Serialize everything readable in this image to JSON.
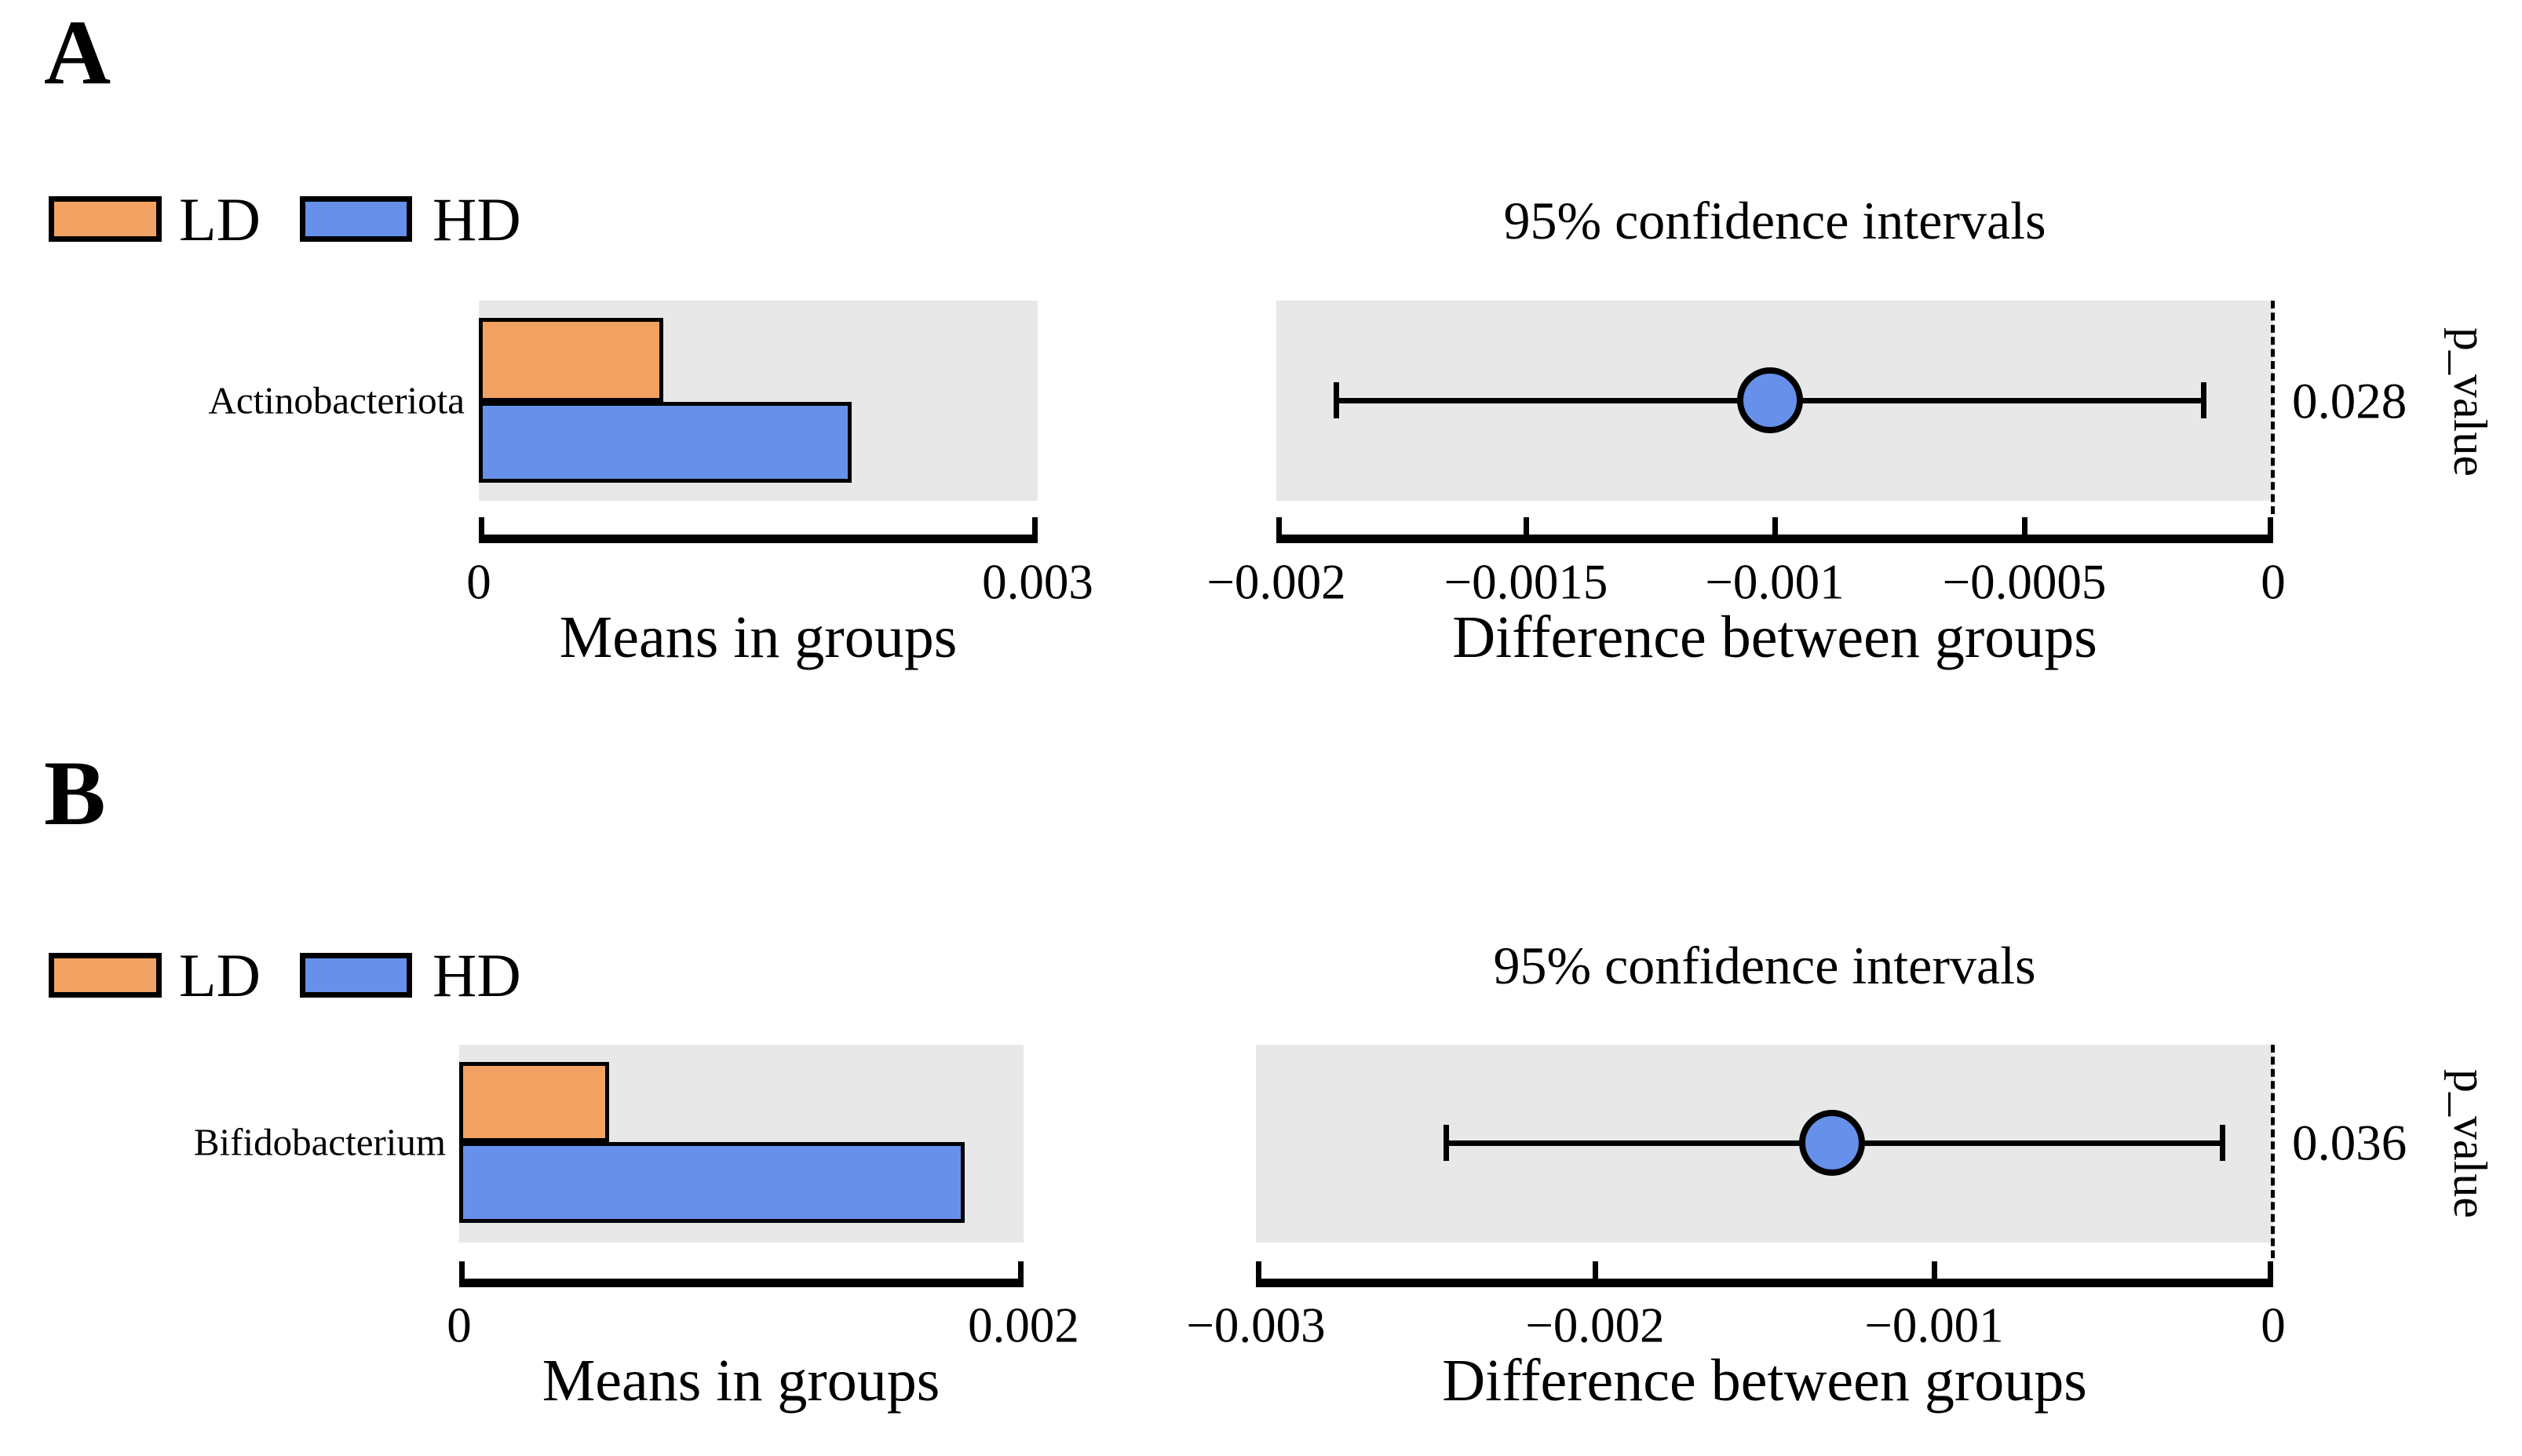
{
  "colors": {
    "ld": "#F1A262",
    "hd": "#6690E9",
    "plot_background": "#E8E8E8",
    "stroke": "#000000"
  },
  "chart_data": [
    {
      "panel": "A",
      "type": "bar",
      "subtype": "extended-error-bar",
      "taxon": "Actinobacteriota",
      "groups": [
        "LD",
        "HD"
      ],
      "group_colors": {
        "LD": "#F1A262",
        "HD": "#6690E9"
      },
      "means": {
        "LD": 0.00099,
        "HD": 0.002
      },
      "means_axis": {
        "label": "Means in groups",
        "range": [
          0,
          0.003
        ],
        "ticks": [
          0,
          0.003
        ],
        "tick_labels": [
          "0",
          "0.003"
        ],
        "grid": false
      },
      "difference": {
        "mean": -0.00101,
        "ci95": [
          -0.00188,
          -0.00014
        ],
        "p_value": "0.028"
      },
      "diff_axis": {
        "label": "Difference between groups",
        "range": [
          -0.002,
          0
        ],
        "ticks": [
          -0.002,
          -0.0015,
          -0.001,
          -0.0005,
          0
        ],
        "tick_labels": [
          "−0.002",
          "−0.0015",
          "−0.001",
          "−0.0005",
          "0"
        ],
        "zero_reference_line": true
      },
      "ci_title": "95% confidence intervals",
      "p_axis_label": "p_value"
    },
    {
      "panel": "B",
      "type": "bar",
      "subtype": "extended-error-bar",
      "taxon": "Bifidobacterium",
      "groups": [
        "LD",
        "HD"
      ],
      "group_colors": {
        "LD": "#F1A262",
        "HD": "#6690E9"
      },
      "means": {
        "LD": 0.00053,
        "HD": 0.00179
      },
      "means_axis": {
        "label": "Means in groups",
        "range": [
          0,
          0.002
        ],
        "ticks": [
          0,
          0.002
        ],
        "tick_labels": [
          "0",
          "0.002"
        ],
        "grid": false
      },
      "difference": {
        "mean": -0.0013,
        "ci95": [
          -0.00244,
          -0.00015
        ],
        "p_value": "0.036"
      },
      "diff_axis": {
        "label": "Difference between groups",
        "range": [
          -0.003,
          0
        ],
        "ticks": [
          -0.003,
          -0.002,
          -0.001,
          0
        ],
        "tick_labels": [
          "−0.003",
          "−0.002",
          "−0.001",
          "0"
        ],
        "zero_reference_line": true
      },
      "ci_title": "95% confidence intervals",
      "p_axis_label": "p_value"
    }
  ]
}
